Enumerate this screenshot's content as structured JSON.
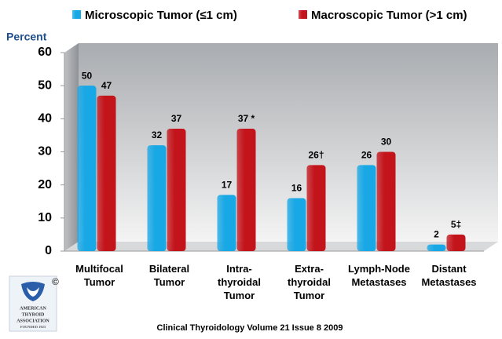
{
  "chart_data": {
    "type": "bar",
    "y_label": "Percent",
    "categories": [
      "Multifocal\nTumor",
      "Bilateral\nTumor",
      "Intra-\nthyroidal\nTumor",
      "Extra-\nthyroidal\nTumor",
      "Lymph-Node\nMetastases",
      "Distant\nMetastases"
    ],
    "series": [
      {
        "name": "Microscopic Tumor  (≤1 cm)",
        "color": "#18a8e6",
        "values": [
          50,
          32,
          17,
          16,
          26,
          2
        ]
      },
      {
        "name": "Macroscopic Tumor (>1 cm)",
        "color": "#c4141b",
        "values": [
          47,
          37,
          37,
          26,
          30,
          5
        ],
        "value_labels": [
          "47",
          "37",
          "37 *",
          "26†",
          "30",
          "5‡"
        ]
      }
    ],
    "ylim": [
      0,
      60
    ],
    "yticks": [
      0,
      10,
      20,
      30,
      40,
      50,
      60
    ],
    "grid": false,
    "legend": "top"
  },
  "footer": "Clinical Thyroidology Volume 21 Issue 8 2009",
  "logo": {
    "lines": [
      "AMERICAN",
      "THYROID",
      "ASSOCIATION"
    ],
    "founded": "FOUNDED 1923",
    "mark": "©"
  }
}
